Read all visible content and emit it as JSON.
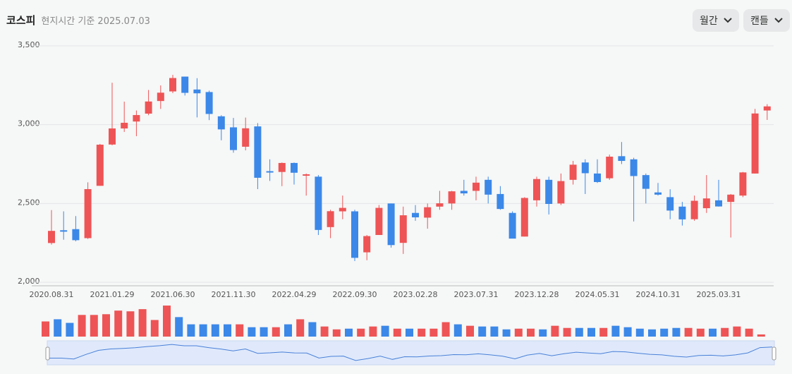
{
  "header": {
    "title": "코스피",
    "subtitle": "현지시간 기준 2025.07.03"
  },
  "controls": {
    "period": "월간",
    "chart_kind": "캔들"
  },
  "chart_data": {
    "type": "candlestick",
    "categories": [
      "2020.08.31",
      null,
      null,
      null,
      null,
      "2021.01.29",
      null,
      null,
      null,
      null,
      "2021.06.30",
      null,
      null,
      null,
      null,
      "2021.11.30",
      null,
      null,
      null,
      null,
      "2022.04.29",
      null,
      null,
      null,
      null,
      "2022.09.30",
      null,
      null,
      null,
      null,
      "2023.02.28",
      null,
      null,
      null,
      null,
      "2023.07.31",
      null,
      null,
      null,
      null,
      "2023.12.28",
      null,
      null,
      null,
      null,
      "2024.05.31",
      null,
      null,
      null,
      null,
      "2024.10.31",
      null,
      null,
      null,
      null,
      "2025.03.31",
      null,
      null,
      null,
      null
    ],
    "open": [
      2249,
      2330,
      2337,
      2280,
      2612,
      2874,
      2976,
      3020,
      3070,
      3150,
      3211,
      3305,
      3223,
      3207,
      3053,
      2983,
      2860,
      2989,
      2705,
      2700,
      2757,
      2680,
      2670,
      2350,
      2450,
      2450,
      2190,
      2300,
      2500,
      2250,
      2440,
      2410,
      2480,
      2500,
      2580,
      2580,
      2650,
      2560,
      2440,
      2290,
      2520,
      2650,
      2500,
      2650,
      2760,
      2690,
      2660,
      2800,
      2780,
      2680,
      2570,
      2540,
      2480,
      2400,
      2470,
      2520,
      2510,
      2550,
      2690,
      3090
    ],
    "high": [
      2458,
      2450,
      2420,
      2634,
      2878,
      3266,
      3146,
      3090,
      3220,
      3249,
      3316,
      3305,
      3295,
      3216,
      3060,
      3043,
      3045,
      3010,
      2780,
      2760,
      2760,
      2690,
      2680,
      2460,
      2550,
      2460,
      2300,
      2490,
      2500,
      2480,
      2490,
      2500,
      2580,
      2580,
      2650,
      2670,
      2670,
      2610,
      2450,
      2540,
      2670,
      2670,
      2690,
      2770,
      2780,
      2780,
      2810,
      2890,
      2790,
      2690,
      2630,
      2590,
      2510,
      2550,
      2680,
      2650,
      2560,
      2700,
      3100,
      3130
    ],
    "low": [
      2239,
      2270,
      2260,
      2275,
      2612,
      2869,
      2954,
      2927,
      3060,
      3100,
      3200,
      3185,
      3046,
      3029,
      2901,
      2822,
      2837,
      2591,
      2643,
      2610,
      2620,
      2550,
      2300,
      2280,
      2400,
      2135,
      2140,
      2300,
      2220,
      2180,
      2390,
      2340,
      2460,
      2460,
      2550,
      2520,
      2500,
      2460,
      2280,
      2290,
      2480,
      2430,
      2490,
      2620,
      2560,
      2630,
      2650,
      2750,
      2386,
      2500,
      2550,
      2400,
      2360,
      2390,
      2440,
      2480,
      2284,
      2540,
      2690,
      3030
    ],
    "close": [
      2326,
      2327,
      2267,
      2591,
      2873,
      2976,
      3012,
      3061,
      3147,
      3203,
      3296,
      3202,
      3199,
      3068,
      2970,
      2839,
      2977,
      2663,
      2699,
      2757,
      2695,
      2685,
      2332,
      2451,
      2472,
      2155,
      2293,
      2472,
      2236,
      2425,
      2412,
      2476,
      2501,
      2577,
      2564,
      2632,
      2556,
      2465,
      2277,
      2535,
      2655,
      2497,
      2642,
      2746,
      2692,
      2636,
      2797,
      2770,
      2674,
      2593,
      2556,
      2455,
      2399,
      2517,
      2532,
      2481,
      2556,
      2697,
      3071,
      3116
    ],
    "volume": [
      21,
      24,
      19,
      30,
      30,
      31,
      36,
      35,
      38,
      23,
      43,
      27,
      17,
      17,
      17,
      17,
      17,
      13,
      13,
      13,
      17,
      24,
      20,
      14,
      10,
      11,
      11,
      14,
      15,
      11,
      11,
      11,
      11,
      20,
      17,
      15,
      14,
      14,
      10,
      11,
      11,
      10,
      15,
      12,
      12,
      12,
      12,
      15,
      13,
      11,
      10,
      11,
      12,
      12,
      11,
      11,
      12,
      14,
      11,
      3
    ],
    "ylim": [
      2000,
      3500
    ],
    "yticks": [
      {
        "value": 2000,
        "label": "2,000"
      },
      {
        "value": 2500,
        "label": "2,500"
      },
      {
        "value": 3000,
        "label": "3,000"
      },
      {
        "value": 3500,
        "label": "3,500"
      }
    ],
    "grid": true,
    "up_color": "#ee5455",
    "down_color": "#3b88e8"
  }
}
